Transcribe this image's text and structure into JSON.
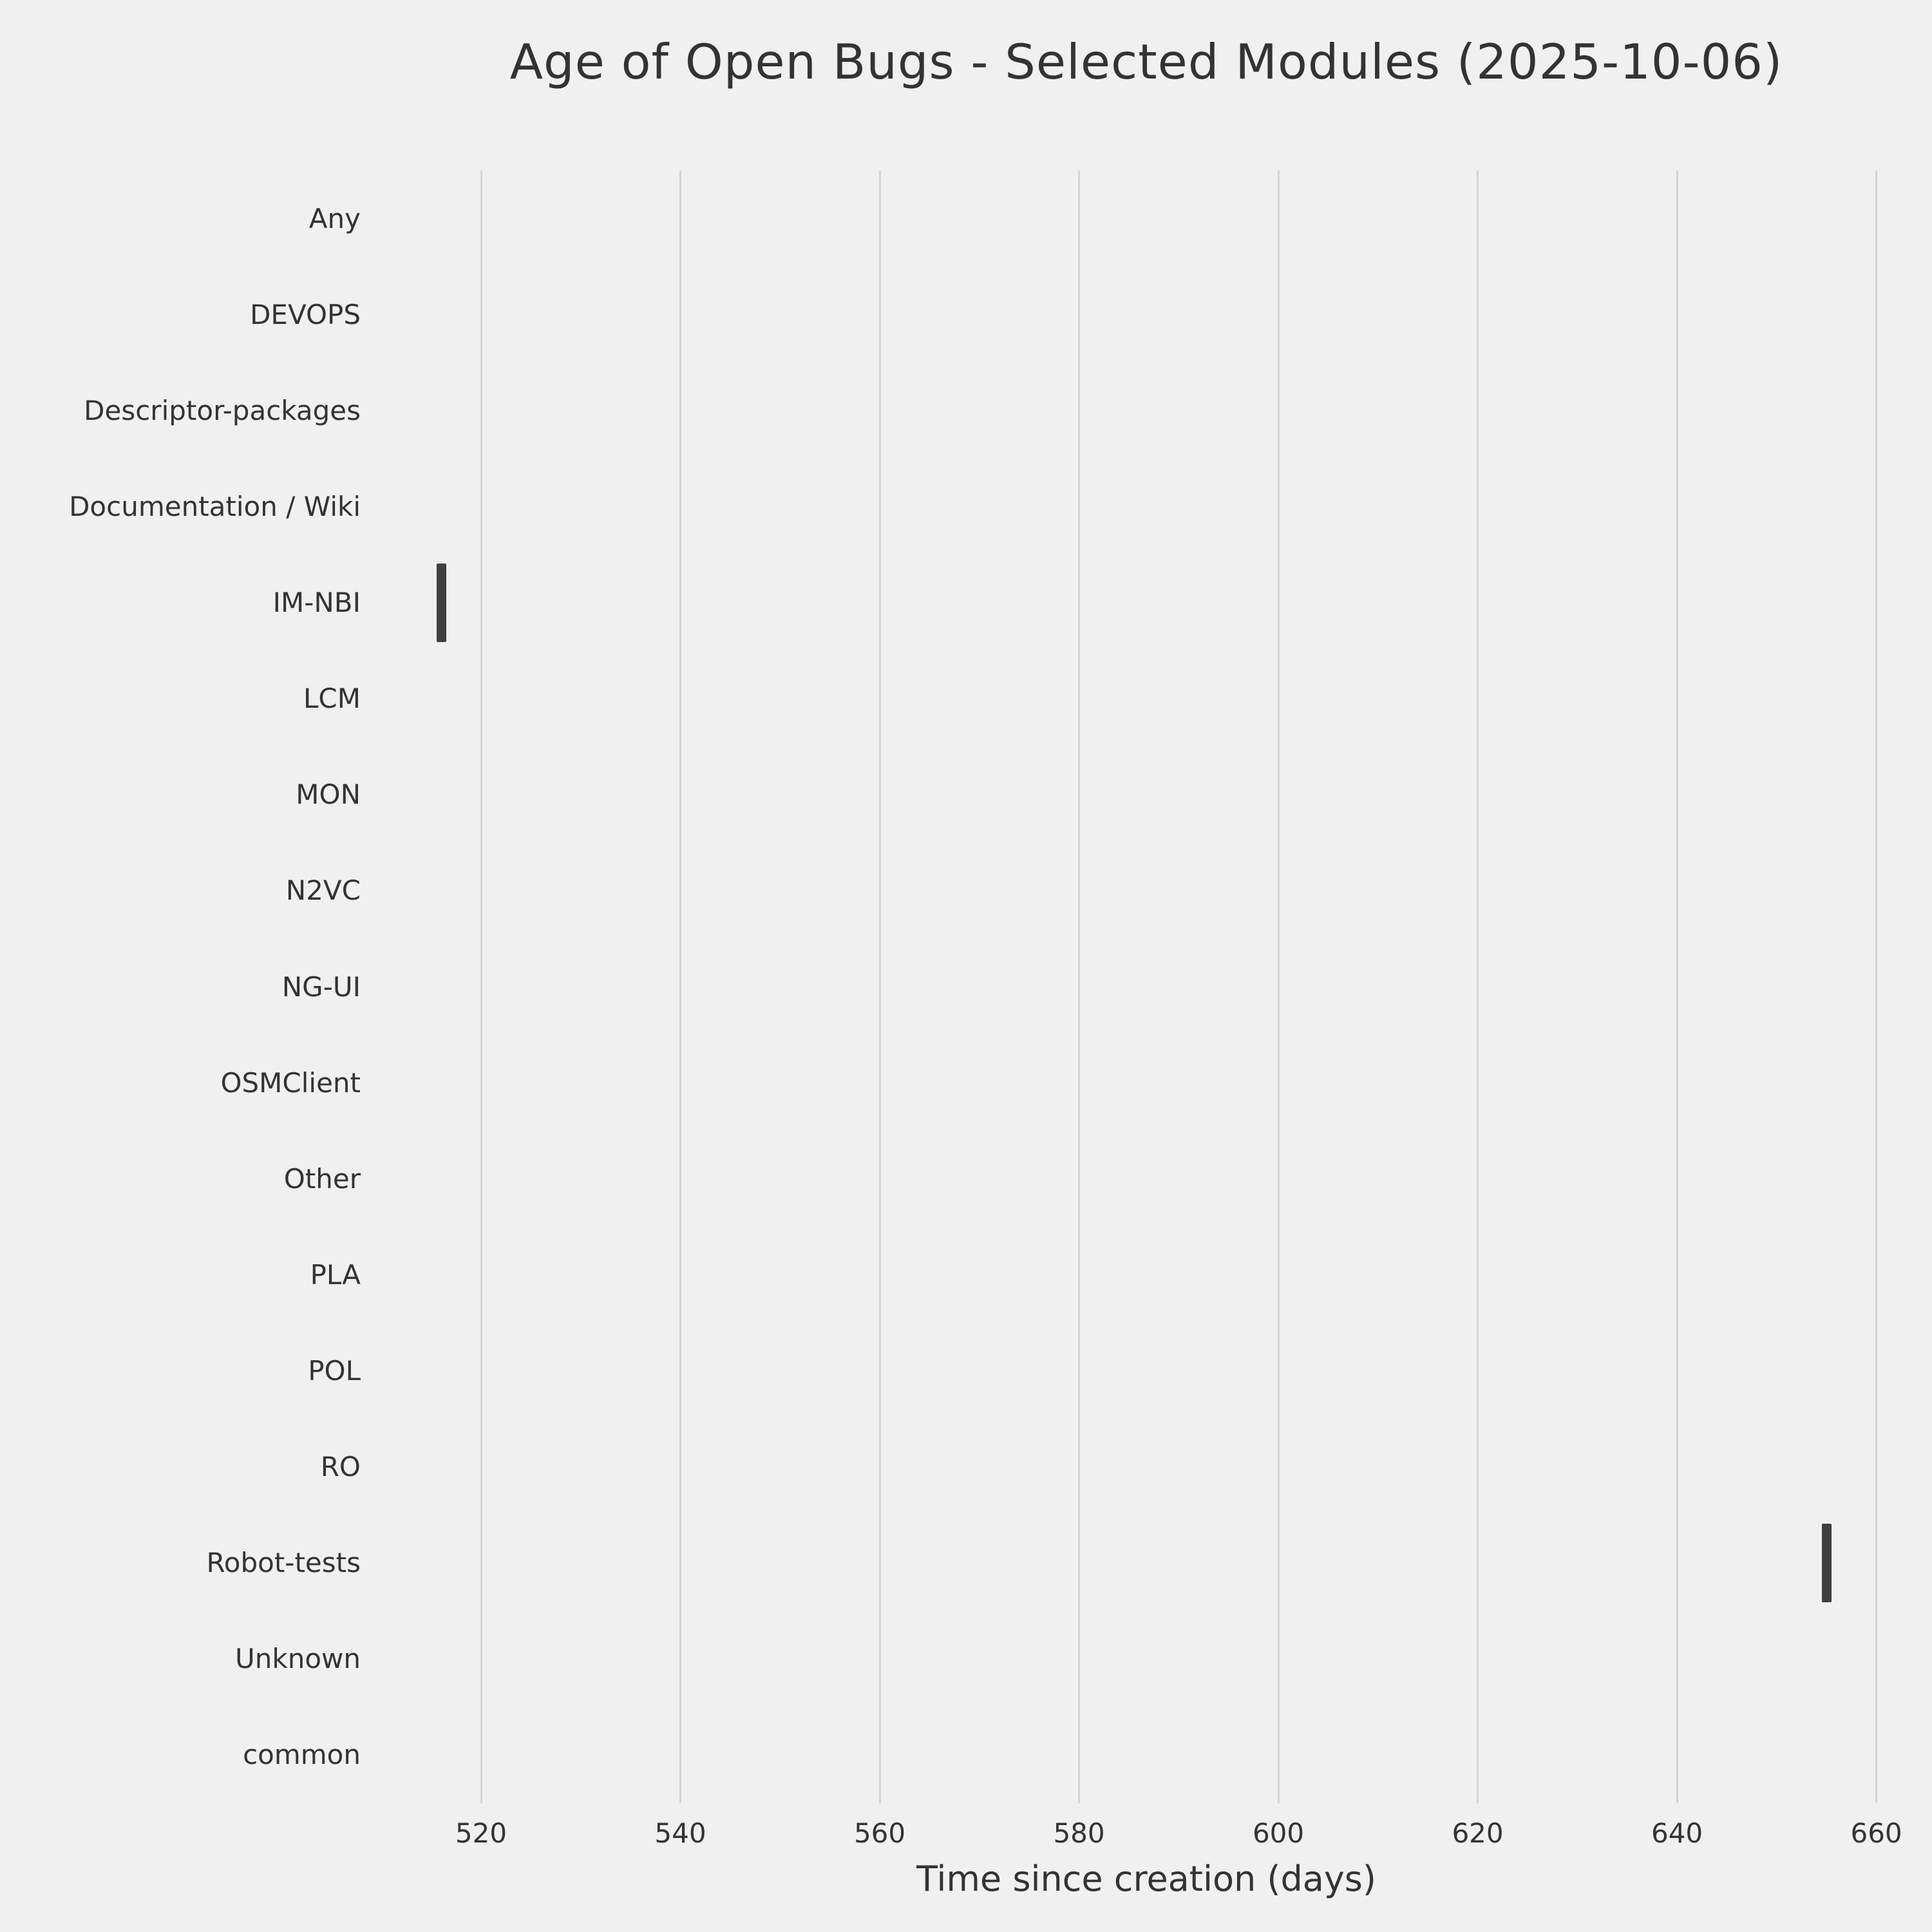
{
  "title": "Age of Open Bugs - Selected Modules (2025-10-06)",
  "chart_data": {
    "type": "scatter",
    "marker": "|",
    "title": "Age of Open Bugs - Selected Modules (2025-10-06)",
    "xlabel": "Time since creation (days)",
    "ylabel": "",
    "categories": [
      "Any",
      "DEVOPS",
      "Descriptor-packages",
      "Documentation / Wiki",
      "IM-NBI",
      "LCM",
      "MON",
      "N2VC",
      "NG-UI",
      "OSMClient",
      "Other",
      "PLA",
      "POL",
      "RO",
      "Robot-tests",
      "Unknown",
      "common"
    ],
    "points": [
      {
        "category": "IM-NBI",
        "value": 516
      },
      {
        "category": "Robot-tests",
        "value": 655
      }
    ],
    "x_ticks": [
      520,
      540,
      560,
      580,
      600,
      620,
      640,
      660
    ],
    "xlim": [
      510.5,
      663
    ],
    "grid": "vertical",
    "legend": "none",
    "colors": {
      "background": "#f0f0f0",
      "gridline": "#d4d4d4",
      "marker": "#3f3f3f",
      "text": "#333333"
    }
  }
}
